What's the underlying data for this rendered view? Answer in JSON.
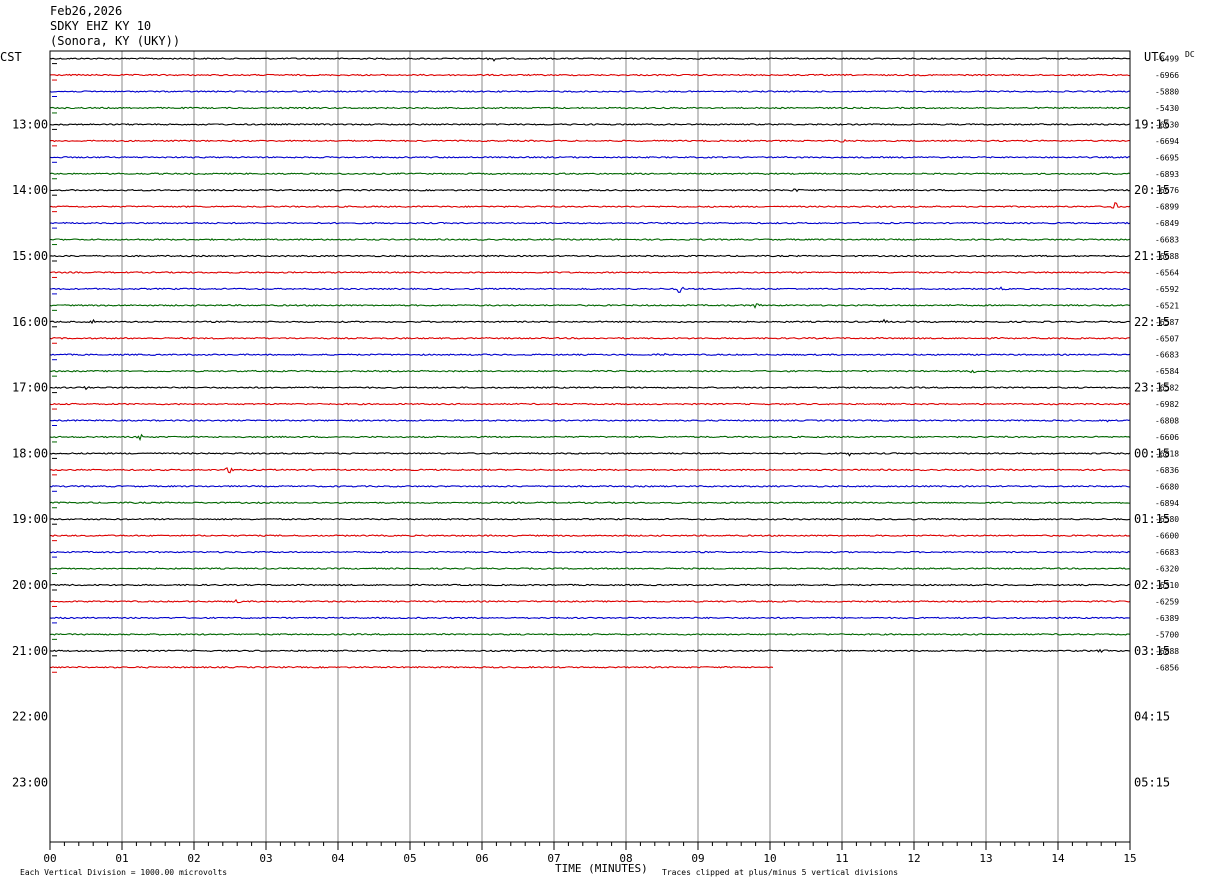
{
  "header": {
    "date": "Feb26,2026",
    "station": "SDKY EHZ KY 10",
    "location": "(Sonora, KY (UKY))"
  },
  "left_tz": "CST",
  "right_tz": "UTC",
  "dc_label": "DC",
  "footer": {
    "scale_note": "Each Vertical Division = 1000.00 microvolts",
    "x_title": "TIME (MINUTES)",
    "clip_note": "Traces clipped at plus/minus 5 vertical divisions"
  },
  "colors": {
    "trace_cycle": [
      "#000000",
      "#dd0000",
      "#0000cc",
      "#006600"
    ],
    "grid": "#888888",
    "frame": "#000000"
  },
  "chart_data": {
    "type": "line",
    "title": "SDKY EHZ KY 10",
    "xlabel": "TIME (MINUTES)",
    "ylabel": "",
    "xlim": [
      0,
      15
    ],
    "x_ticks": [
      "00",
      "01",
      "02",
      "03",
      "04",
      "05",
      "06",
      "07",
      "08",
      "09",
      "10",
      "11",
      "12",
      "13",
      "14",
      "15"
    ],
    "row_minutes": 15,
    "total_rows": 44,
    "left_hour_labels": [
      "13:00",
      "14:00",
      "15:00",
      "16:00",
      "17:00",
      "18:00",
      "19:00",
      "20:00",
      "21:00",
      "22:00",
      "23:00"
    ],
    "right_hour_labels": [
      "19:15",
      "20:15",
      "21:15",
      "22:15",
      "23:15",
      "00:15",
      "01:15",
      "02:15",
      "03:15",
      "04:15",
      "05:15"
    ],
    "hour_label_rows": [
      4,
      8,
      12,
      16,
      20,
      24,
      28,
      32,
      36,
      40,
      44
    ],
    "dc_offsets": [
      "-6499",
      "-6966",
      "-5880",
      "-5430",
      "-6630",
      "-6694",
      "-6695",
      "-6893",
      "-6676",
      "-6899",
      "-6849",
      "-6683",
      "-6688",
      "-6564",
      "-6592",
      "-6521",
      "-6587",
      "-6507",
      "-6683",
      "-6584",
      "-6582",
      "-6982",
      "-6808",
      "-6606",
      "-6818",
      "-6836",
      "-6680",
      "-6894",
      "-6580",
      "-6600",
      "-6683",
      "-6320",
      "-6310",
      "-6259",
      "-6389",
      "-5700",
      "-6888",
      "-6856"
    ],
    "trace_count": 38,
    "last_trace_end_minute": 10.05,
    "events": [
      {
        "row": 0,
        "minute": 6.15,
        "amp": 3
      },
      {
        "row": 5,
        "minute": 11.0,
        "amp": 1.5
      },
      {
        "row": 8,
        "minute": 10.35,
        "amp": 1.5
      },
      {
        "row": 9,
        "minute": 14.8,
        "amp": 4
      },
      {
        "row": 14,
        "minute": 8.75,
        "amp": 5
      },
      {
        "row": 14,
        "minute": 13.2,
        "amp": 2
      },
      {
        "row": 15,
        "minute": 9.8,
        "amp": 3
      },
      {
        "row": 16,
        "minute": 0.6,
        "amp": 2
      },
      {
        "row": 16,
        "minute": 11.6,
        "amp": 2
      },
      {
        "row": 18,
        "minute": 8.5,
        "amp": 2
      },
      {
        "row": 19,
        "minute": 12.8,
        "amp": 2
      },
      {
        "row": 20,
        "minute": 0.5,
        "amp": 2
      },
      {
        "row": 22,
        "minute": 14.7,
        "amp": 2
      },
      {
        "row": 23,
        "minute": 1.25,
        "amp": 3
      },
      {
        "row": 24,
        "minute": 11.1,
        "amp": 2
      },
      {
        "row": 25,
        "minute": 2.5,
        "amp": 4
      },
      {
        "row": 33,
        "minute": 2.6,
        "amp": 3
      },
      {
        "row": 36,
        "minute": 14.6,
        "amp": 2
      }
    ]
  }
}
